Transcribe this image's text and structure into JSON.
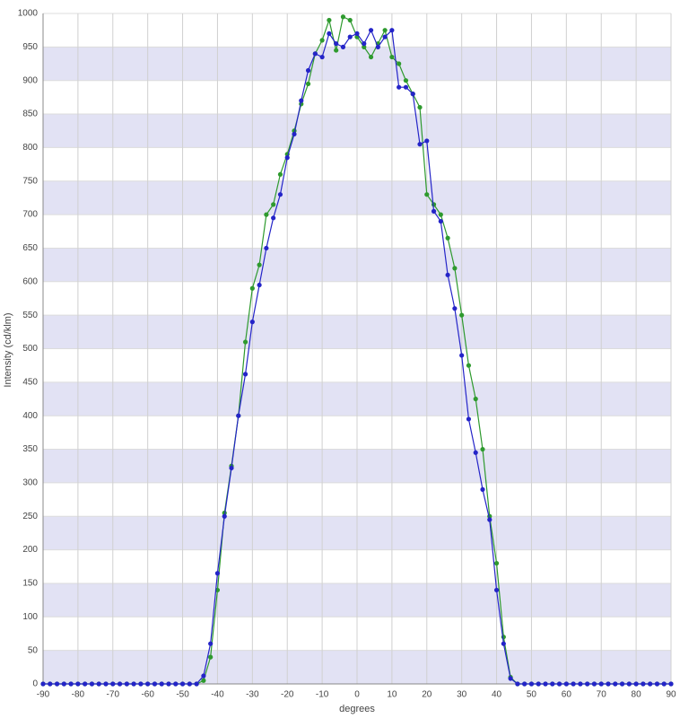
{
  "chart_data": {
    "type": "line",
    "x_label": "degrees",
    "y_label": "Intensity (cd/klm)",
    "x": [
      -90,
      -88,
      -86,
      -84,
      -82,
      -80,
      -78,
      -76,
      -74,
      -72,
      -70,
      -68,
      -66,
      -64,
      -62,
      -60,
      -58,
      -56,
      -54,
      -52,
      -50,
      -48,
      -46,
      -44,
      -42,
      -40,
      -38,
      -36,
      -34,
      -32,
      -30,
      -28,
      -26,
      -24,
      -22,
      -20,
      -18,
      -16,
      -14,
      -12,
      -10,
      -8,
      -6,
      -4,
      -2,
      0,
      2,
      4,
      6,
      8,
      10,
      12,
      14,
      16,
      18,
      20,
      22,
      24,
      26,
      28,
      30,
      32,
      34,
      36,
      38,
      40,
      42,
      44,
      46,
      48,
      50,
      52,
      54,
      56,
      58,
      60,
      62,
      64,
      66,
      68,
      70,
      72,
      74,
      76,
      78,
      80,
      82,
      84,
      86,
      88,
      90
    ],
    "series": [
      {
        "color": "#2e9a2e",
        "values": [
          0,
          0,
          0,
          0,
          0,
          0,
          0,
          0,
          0,
          0,
          0,
          0,
          0,
          0,
          0,
          0,
          0,
          0,
          0,
          0,
          0,
          0,
          0,
          5,
          40,
          140,
          255,
          325,
          400,
          510,
          590,
          625,
          700,
          715,
          760,
          790,
          825,
          865,
          895,
          940,
          960,
          990,
          945,
          995,
          990,
          965,
          950,
          935,
          955,
          975,
          935,
          925,
          900,
          880,
          860,
          730,
          715,
          700,
          665,
          620,
          550,
          475,
          425,
          350,
          250,
          180,
          70,
          10,
          0,
          0,
          0,
          0,
          0,
          0,
          0,
          0,
          0,
          0,
          0,
          0,
          0,
          0,
          0,
          0,
          0,
          0,
          0,
          0,
          0,
          0,
          0
        ]
      },
      {
        "color": "#2424c8",
        "values": [
          0,
          0,
          0,
          0,
          0,
          0,
          0,
          0,
          0,
          0,
          0,
          0,
          0,
          0,
          0,
          0,
          0,
          0,
          0,
          0,
          0,
          0,
          0,
          12,
          60,
          165,
          250,
          322,
          400,
          462,
          540,
          595,
          650,
          695,
          730,
          785,
          820,
          870,
          915,
          940,
          935,
          970,
          955,
          950,
          965,
          970,
          955,
          975,
          950,
          965,
          975,
          890,
          890,
          880,
          805,
          810,
          705,
          690,
          610,
          560,
          490,
          395,
          345,
          290,
          245,
          140,
          60,
          8,
          0,
          0,
          0,
          0,
          0,
          0,
          0,
          0,
          0,
          0,
          0,
          0,
          0,
          0,
          0,
          0,
          0,
          0,
          0,
          0,
          0,
          0,
          0
        ]
      }
    ],
    "xlim": [
      -90,
      90
    ],
    "xticks": [
      -90,
      -80,
      -70,
      -60,
      -50,
      -40,
      -30,
      -20,
      -10,
      0,
      10,
      20,
      30,
      40,
      50,
      60,
      70,
      80,
      90
    ],
    "ylim": [
      0,
      1000
    ],
    "yticks": [
      0,
      50,
      100,
      150,
      200,
      250,
      300,
      350,
      400,
      450,
      500,
      550,
      600,
      650,
      700,
      750,
      800,
      850,
      900,
      950,
      1000
    ],
    "grid": true
  }
}
